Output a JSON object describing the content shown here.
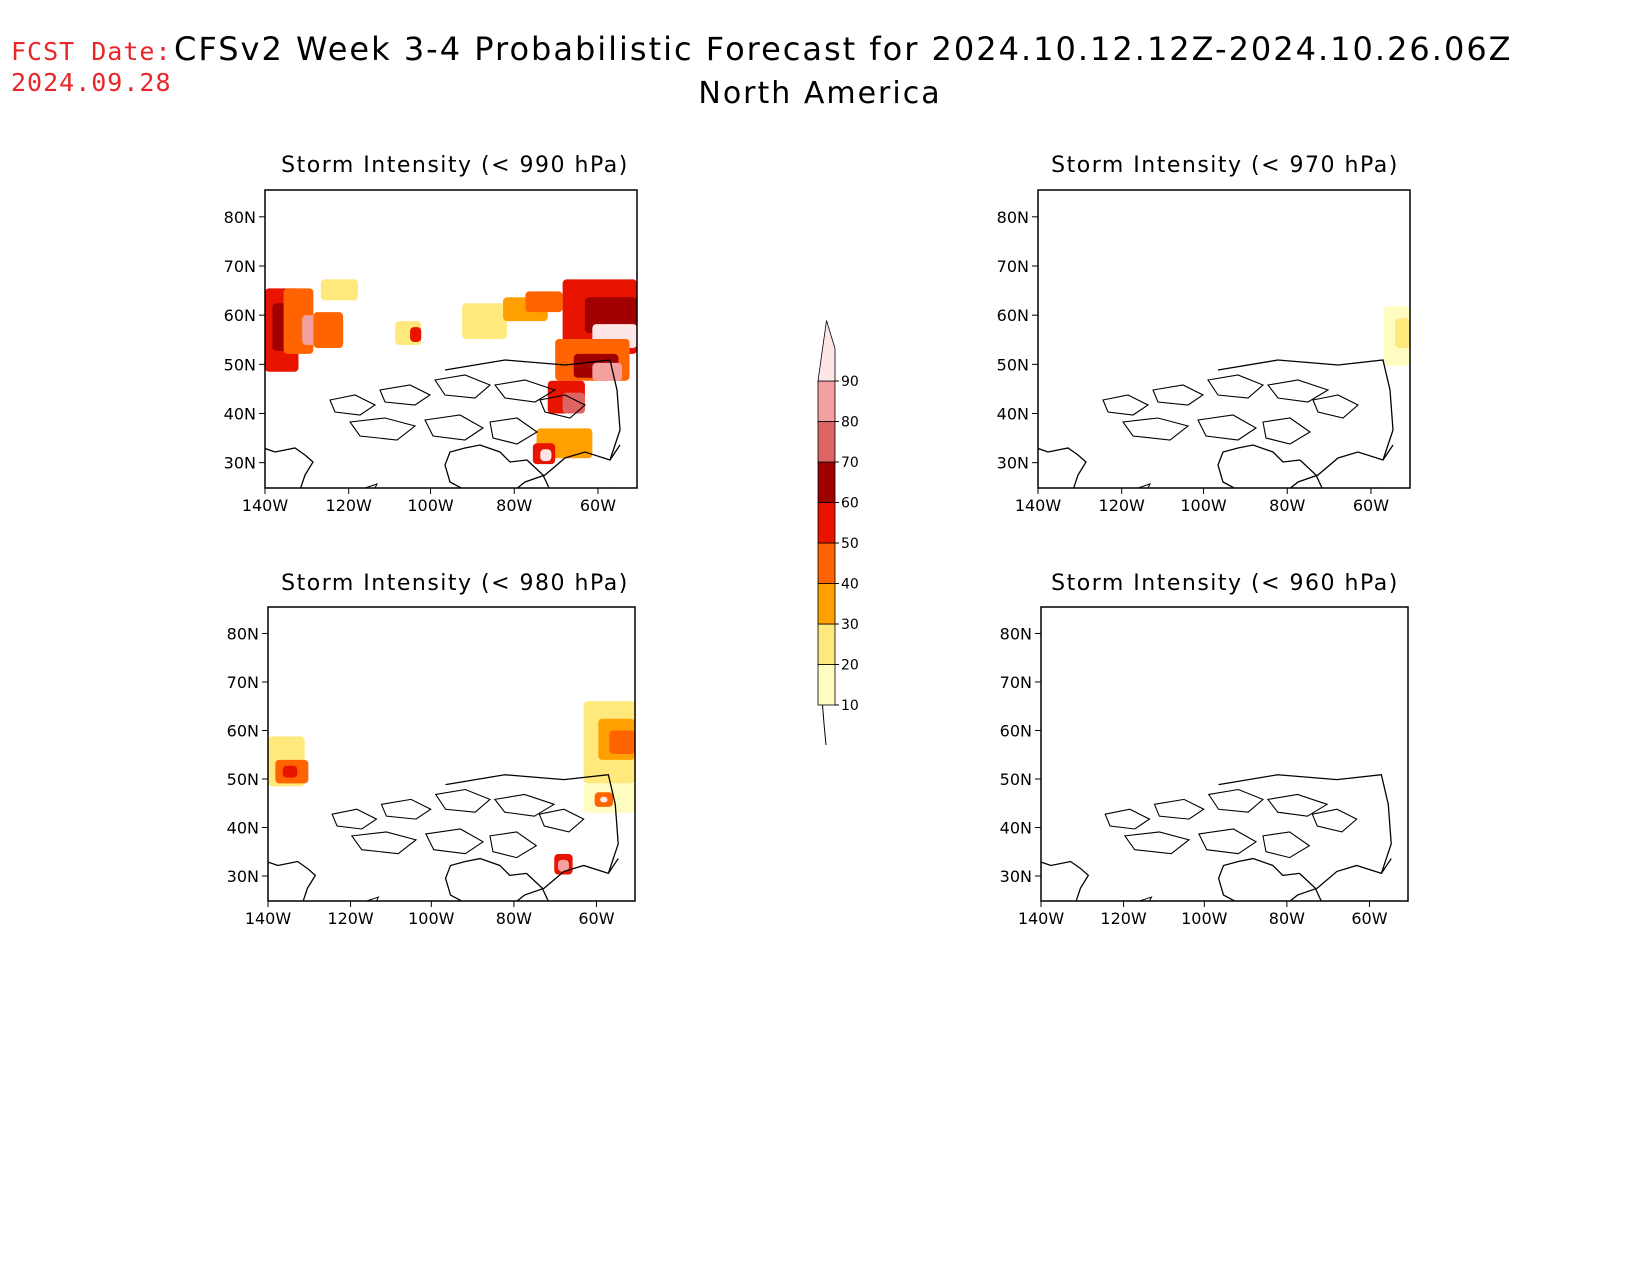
{
  "header": {
    "fcst_label": "FCST Date:",
    "fcst_date": "2024.09.28",
    "title": "CFSv2 Week 3-4 Probabilistic Forecast for 2024.10.12.12Z-2024.10.26.06Z",
    "subtitle": "North America"
  },
  "axes": {
    "lat_ticks": [
      "80N",
      "70N",
      "60N",
      "50N",
      "40N",
      "30N"
    ],
    "lon_ticks": [
      "140W",
      "120W",
      "100W",
      "80W",
      "60W"
    ]
  },
  "colorbar": {
    "levels": [
      "10",
      "20",
      "30",
      "40",
      "50",
      "60",
      "70",
      "80",
      "90"
    ],
    "colors": [
      "#fffcc2",
      "#ffe87c",
      "#ffa000",
      "#ff6400",
      "#e81400",
      "#a00000",
      "#de6464",
      "#f5a0a0",
      "#ffe6e6"
    ]
  },
  "panels": [
    {
      "title": "Storm Intensity (< 990 hPa)"
    },
    {
      "title": "Storm Intensity (< 970 hPa)"
    },
    {
      "title": "Storm Intensity (< 980 hPa)"
    },
    {
      "title": "Storm Intensity (< 960 hPa)"
    }
  ]
}
